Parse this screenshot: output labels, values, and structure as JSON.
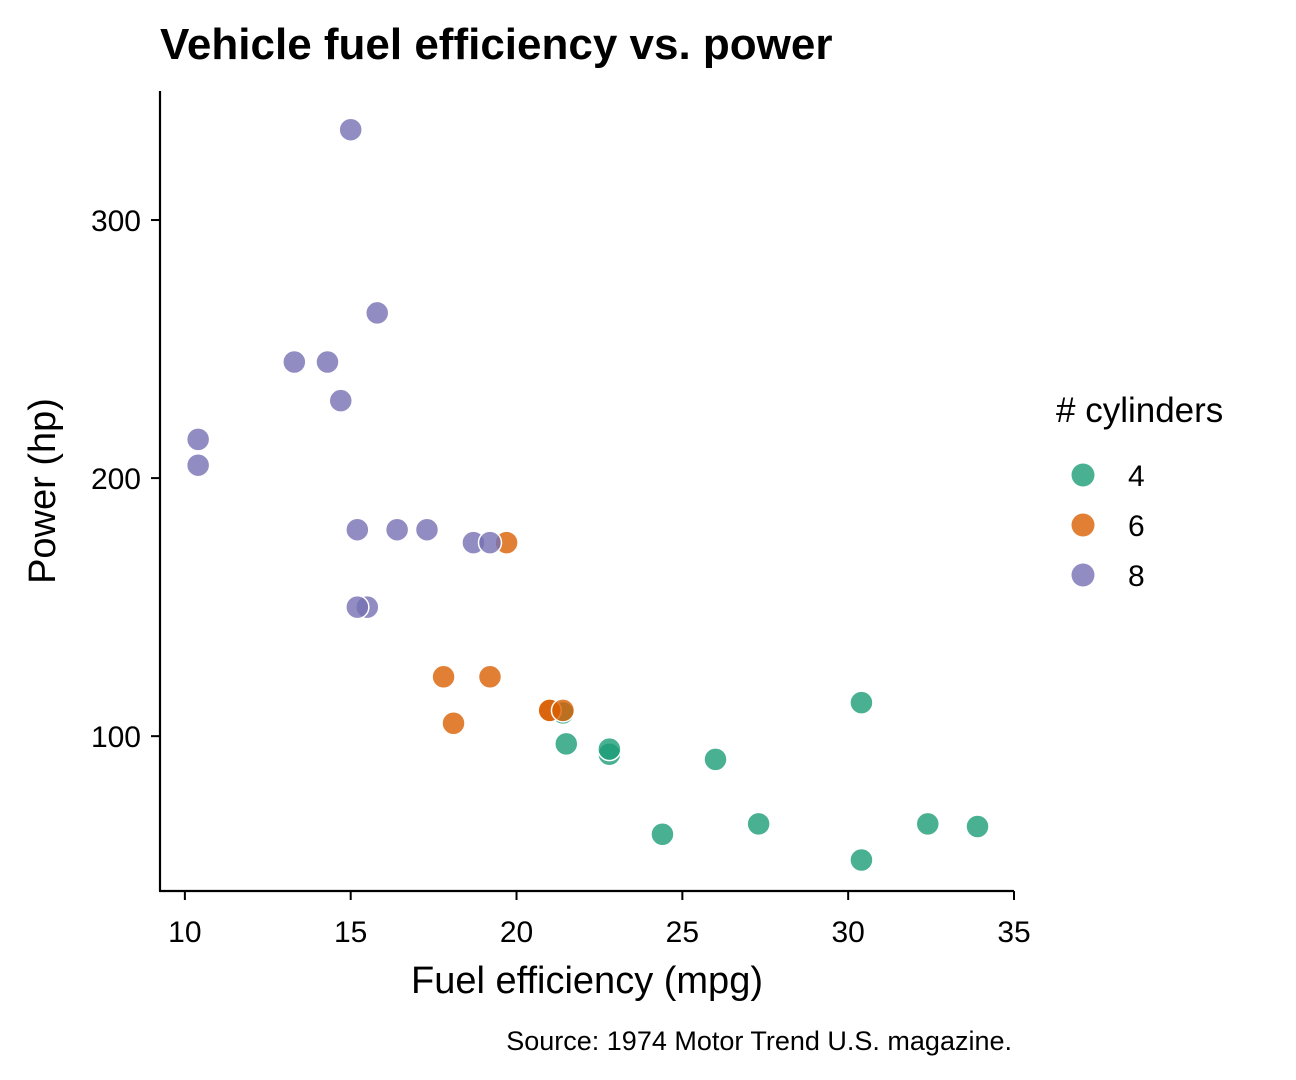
{
  "chart_data": {
    "type": "scatter",
    "title": "Vehicle fuel efficiency vs. power",
    "xlabel": "Fuel efficiency (mpg)",
    "ylabel": "Power (hp)",
    "caption": "Source: 1974 Motor Trend U.S. magazine.",
    "xlim": [
      9.25,
      35
    ],
    "ylim": [
      40,
      350
    ],
    "xticks": [
      10,
      15,
      20,
      25,
      30,
      35
    ],
    "yticks": [
      100,
      200,
      300
    ],
    "grid": false,
    "legend": {
      "title": "# cylinders",
      "position": "right"
    },
    "series": [
      {
        "name": "4",
        "color": "#1b9e77",
        "points": [
          {
            "x": 22.8,
            "y": 93
          },
          {
            "x": 24.4,
            "y": 62
          },
          {
            "x": 22.8,
            "y": 95
          },
          {
            "x": 32.4,
            "y": 66
          },
          {
            "x": 30.4,
            "y": 52
          },
          {
            "x": 33.9,
            "y": 65
          },
          {
            "x": 21.5,
            "y": 97
          },
          {
            "x": 27.3,
            "y": 66
          },
          {
            "x": 26.0,
            "y": 91
          },
          {
            "x": 30.4,
            "y": 113
          },
          {
            "x": 21.4,
            "y": 109
          }
        ]
      },
      {
        "name": "6",
        "color": "#d95f02",
        "points": [
          {
            "x": 21.0,
            "y": 110
          },
          {
            "x": 21.0,
            "y": 110
          },
          {
            "x": 21.4,
            "y": 110
          },
          {
            "x": 18.1,
            "y": 105
          },
          {
            "x": 19.2,
            "y": 123
          },
          {
            "x": 17.8,
            "y": 123
          },
          {
            "x": 19.7,
            "y": 175
          }
        ]
      },
      {
        "name": "8",
        "color": "#7570b3",
        "points": [
          {
            "x": 18.7,
            "y": 175
          },
          {
            "x": 14.3,
            "y": 245
          },
          {
            "x": 16.4,
            "y": 180
          },
          {
            "x": 17.3,
            "y": 180
          },
          {
            "x": 15.2,
            "y": 180
          },
          {
            "x": 10.4,
            "y": 205
          },
          {
            "x": 10.4,
            "y": 215
          },
          {
            "x": 14.7,
            "y": 230
          },
          {
            "x": 15.5,
            "y": 150
          },
          {
            "x": 15.2,
            "y": 150
          },
          {
            "x": 13.3,
            "y": 245
          },
          {
            "x": 19.2,
            "y": 175
          },
          {
            "x": 15.8,
            "y": 264
          },
          {
            "x": 15.0,
            "y": 335
          }
        ]
      }
    ]
  }
}
